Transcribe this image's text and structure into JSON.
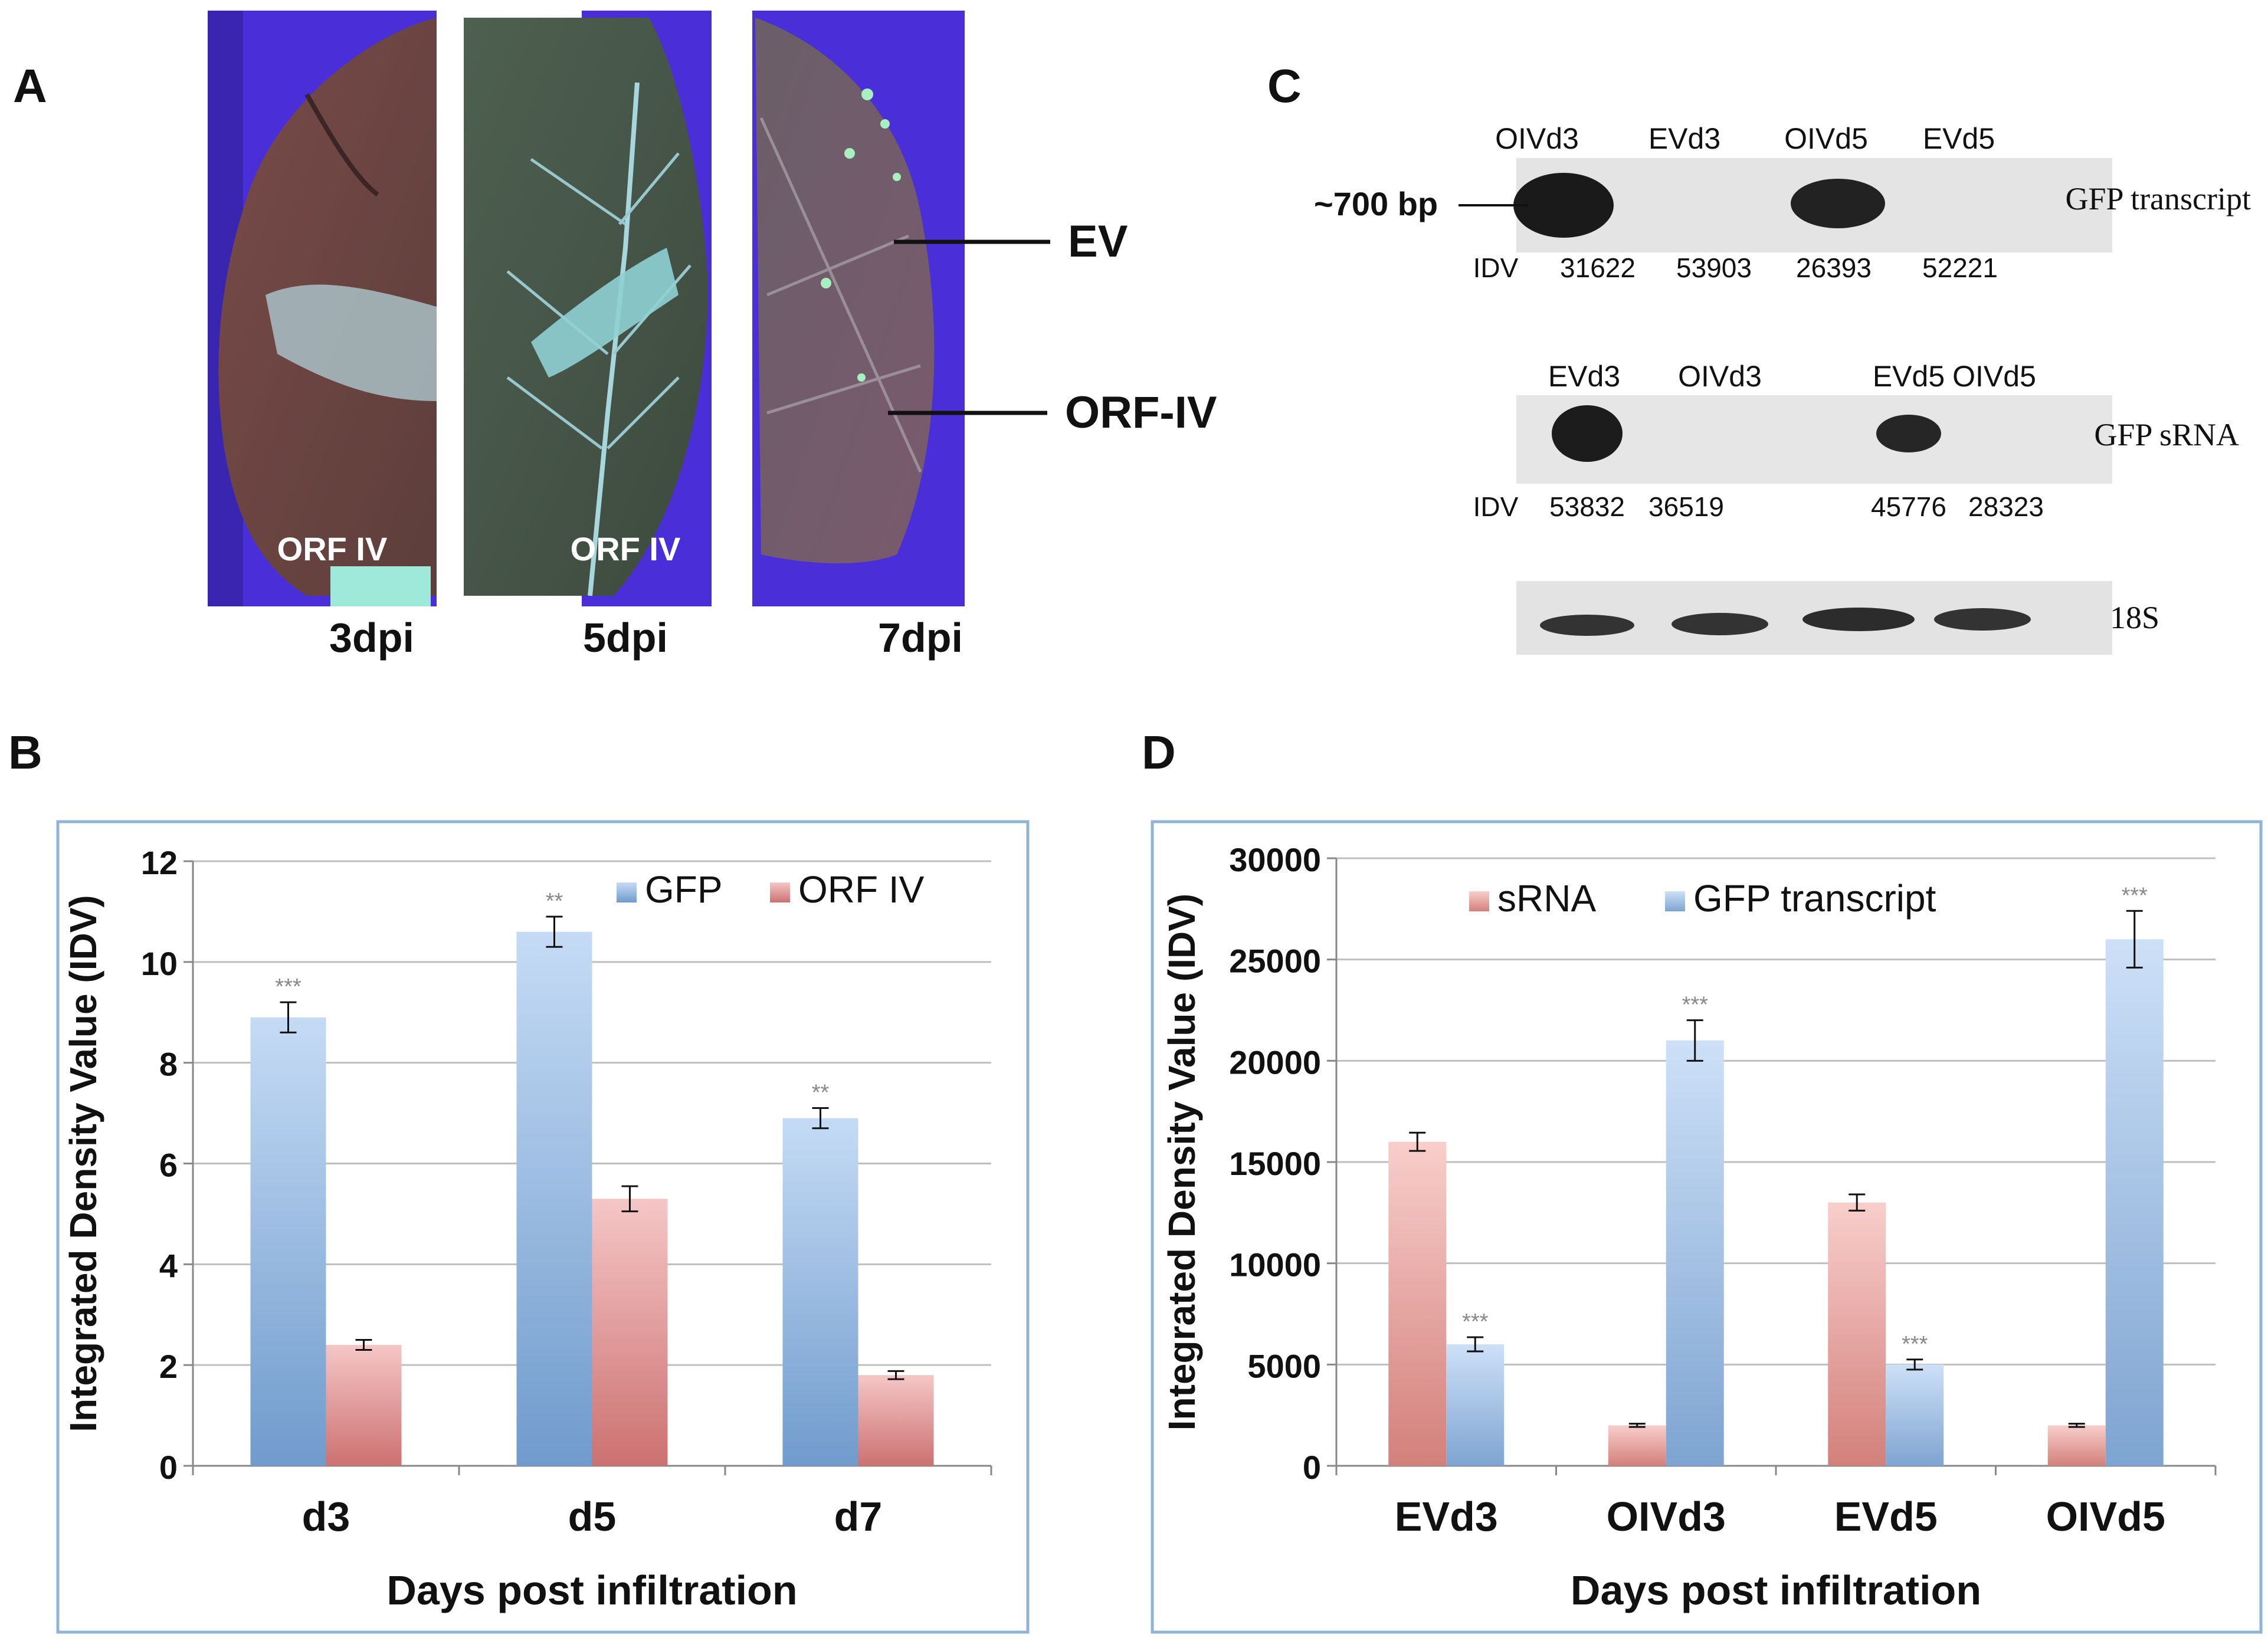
{
  "colors": {
    "gfp_blue": "#7fb0e8",
    "orf_red": "#e88080",
    "srna_red": "#f0918c",
    "transcript_blue": "#8fbaee",
    "chart_border": "#8fb4d6",
    "grid": "#bfbfbf",
    "leaf_bg": "#4a2fd8"
  },
  "panel_a": {
    "letter": "A",
    "leaves": [
      {
        "label": "ORF IV",
        "dpi": "3dpi"
      },
      {
        "label": "ORF IV",
        "dpi": "5dpi"
      },
      {
        "label": "",
        "dpi": "7dpi"
      }
    ],
    "annotations": {
      "ev": "EV",
      "orf": "ORF-IV"
    }
  },
  "panel_c": {
    "letter": "C",
    "marker": "~700 bp",
    "blot1": {
      "lanes": [
        "OIVd3",
        "EVd3",
        "OIVd5",
        "EVd5"
      ],
      "right_label": "GFP transcript",
      "idv_label": "IDV",
      "idv_values": [
        "31622",
        "53903",
        "26393",
        "52221"
      ]
    },
    "blot2": {
      "lanes": [
        "EVd3",
        "OIVd3",
        "EVd5",
        "OIVd5"
      ],
      "right_label": "GFP sRNA",
      "idv_label": "IDV",
      "idv_values": [
        "53832",
        "36519",
        "45776",
        "28323"
      ]
    },
    "blot3": {
      "right_label": "18S"
    }
  },
  "chart_data": [
    {
      "panel": "B",
      "type": "bar",
      "title": "",
      "categories": [
        "d3",
        "d5",
        "d7"
      ],
      "series": [
        {
          "name": "GFP",
          "values": [
            8.9,
            10.6,
            6.9
          ],
          "errors": [
            0.3,
            0.3,
            0.2
          ],
          "significance": [
            "***",
            "**",
            "**"
          ]
        },
        {
          "name": "ORF IV",
          "values": [
            2.4,
            5.3,
            1.8
          ],
          "errors": [
            0.1,
            0.25,
            0.08
          ],
          "significance": [
            "",
            "",
            ""
          ]
        }
      ],
      "xlabel": "Days post infiltration",
      "ylabel": "Integrated Density Value (IDV)",
      "ylim": [
        0,
        12
      ],
      "yticks": [
        0,
        2,
        4,
        6,
        8,
        10,
        12
      ],
      "ytick_labels": [
        "0",
        "2",
        "4",
        "6",
        "8",
        "10",
        "12"
      ],
      "grid": true,
      "legend": "top-right"
    },
    {
      "panel": "D",
      "type": "bar",
      "title": "",
      "categories": [
        "EVd3",
        "OIVd3",
        "EVd5",
        "OIVd5"
      ],
      "series": [
        {
          "name": "sRNA",
          "values": [
            16000,
            2000,
            13000,
            2000
          ],
          "errors": [
            450,
            80,
            400,
            80
          ],
          "significance": [
            "",
            "",
            "",
            ""
          ]
        },
        {
          "name": "GFP transcript",
          "values": [
            6000,
            21000,
            5000,
            26000
          ],
          "errors": [
            350,
            1000,
            250,
            1400
          ],
          "significance": [
            "***",
            "***",
            "***",
            "***"
          ]
        }
      ],
      "xlabel": "Days post infiltration",
      "ylabel": "Integrated Density Value (IDV)",
      "ylim": [
        0,
        30000
      ],
      "yticks": [
        0,
        5000,
        10000,
        15000,
        20000,
        25000,
        30000
      ],
      "ytick_labels": [
        "0",
        "5000",
        "10000",
        "15000",
        "20000",
        "25000",
        "30000"
      ],
      "grid": true,
      "legend": "top"
    }
  ]
}
